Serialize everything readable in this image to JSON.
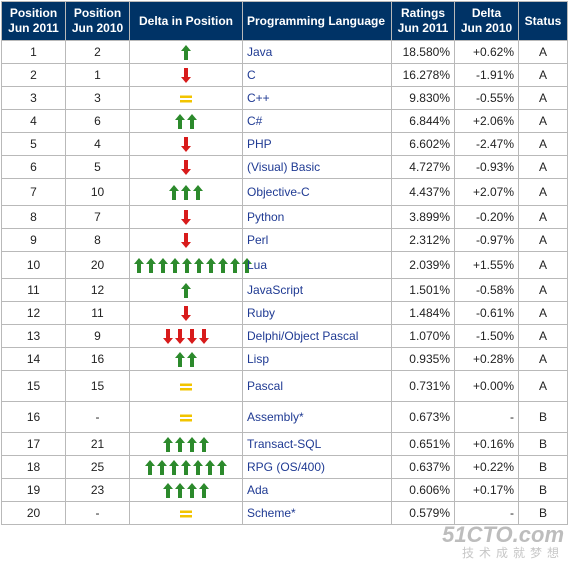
{
  "headers": [
    "Position\nJun 2011",
    "Position\nJun 2010",
    "Delta in Position",
    "Programming Language",
    "Ratings\nJun 2011",
    "Delta\nJun 2010",
    "Status"
  ],
  "colors": {
    "header_bg": "#003366",
    "up": "#2c8a2c",
    "down": "#d81b1b",
    "same": "#f2c400"
  },
  "rows": [
    {
      "pos2011": "1",
      "pos2010": "2",
      "delta": {
        "dir": "up",
        "count": 1
      },
      "language": "Java",
      "rating": "18.580%",
      "delta_rating": "+0.62%",
      "status": "A"
    },
    {
      "pos2011": "2",
      "pos2010": "1",
      "delta": {
        "dir": "down",
        "count": 1
      },
      "language": "C",
      "rating": "16.278%",
      "delta_rating": "-1.91%",
      "status": "A"
    },
    {
      "pos2011": "3",
      "pos2010": "3",
      "delta": {
        "dir": "same",
        "count": 1
      },
      "language": "C++",
      "rating": "9.830%",
      "delta_rating": "-0.55%",
      "status": "A"
    },
    {
      "pos2011": "4",
      "pos2010": "6",
      "delta": {
        "dir": "up",
        "count": 2
      },
      "language": "C#",
      "rating": "6.844%",
      "delta_rating": "+2.06%",
      "status": "A"
    },
    {
      "pos2011": "5",
      "pos2010": "4",
      "delta": {
        "dir": "down",
        "count": 1
      },
      "language": "PHP",
      "rating": "6.602%",
      "delta_rating": "-2.47%",
      "status": "A"
    },
    {
      "pos2011": "6",
      "pos2010": "5",
      "delta": {
        "dir": "down",
        "count": 1
      },
      "language": "(Visual) Basic",
      "rating": "4.727%",
      "delta_rating": "-0.93%",
      "status": "A"
    },
    {
      "pos2011": "7",
      "pos2010": "10",
      "delta": {
        "dir": "up",
        "count": 3
      },
      "language": "Objective-C",
      "rating": "4.437%",
      "delta_rating": "+2.07%",
      "status": "A"
    },
    {
      "pos2011": "8",
      "pos2010": "7",
      "delta": {
        "dir": "down",
        "count": 1
      },
      "language": "Python",
      "rating": "3.899%",
      "delta_rating": "-0.20%",
      "status": "A"
    },
    {
      "pos2011": "9",
      "pos2010": "8",
      "delta": {
        "dir": "down",
        "count": 1
      },
      "language": "Perl",
      "rating": "2.312%",
      "delta_rating": "-0.97%",
      "status": "A"
    },
    {
      "pos2011": "10",
      "pos2010": "20",
      "delta": {
        "dir": "up",
        "count": 10
      },
      "language": "Lua",
      "rating": "2.039%",
      "delta_rating": "+1.55%",
      "status": "A"
    },
    {
      "pos2011": "11",
      "pos2010": "12",
      "delta": {
        "dir": "up",
        "count": 1
      },
      "language": "JavaScript",
      "rating": "1.501%",
      "delta_rating": "-0.58%",
      "status": "A"
    },
    {
      "pos2011": "12",
      "pos2010": "11",
      "delta": {
        "dir": "down",
        "count": 1
      },
      "language": "Ruby",
      "rating": "1.484%",
      "delta_rating": "-0.61%",
      "status": "A"
    },
    {
      "pos2011": "13",
      "pos2010": "9",
      "delta": {
        "dir": "down",
        "count": 4
      },
      "language": "Delphi/Object Pascal",
      "rating": "1.070%",
      "delta_rating": "-1.50%",
      "status": "A"
    },
    {
      "pos2011": "14",
      "pos2010": "16",
      "delta": {
        "dir": "up",
        "count": 2
      },
      "language": "Lisp",
      "rating": "0.935%",
      "delta_rating": "+0.28%",
      "status": "A"
    },
    {
      "pos2011": "15",
      "pos2010": "15",
      "delta": {
        "dir": "same",
        "count": 1
      },
      "language": "Pascal",
      "rating": "0.731%",
      "delta_rating": "+0.00%",
      "status": "A"
    },
    {
      "pos2011": "16",
      "pos2010": "-",
      "delta": {
        "dir": "same",
        "count": 1
      },
      "language": "Assembly*",
      "rating": "0.673%",
      "delta_rating": "-",
      "status": "B"
    },
    {
      "pos2011": "17",
      "pos2010": "21",
      "delta": {
        "dir": "up",
        "count": 4
      },
      "language": "Transact-SQL",
      "rating": "0.651%",
      "delta_rating": "+0.16%",
      "status": "B"
    },
    {
      "pos2011": "18",
      "pos2010": "25",
      "delta": {
        "dir": "up",
        "count": 7
      },
      "language": "RPG (OS/400)",
      "rating": "0.637%",
      "delta_rating": "+0.22%",
      "status": "B"
    },
    {
      "pos2011": "19",
      "pos2010": "23",
      "delta": {
        "dir": "up",
        "count": 4
      },
      "language": "Ada",
      "rating": "0.606%",
      "delta_rating": "+0.17%",
      "status": "B"
    },
    {
      "pos2011": "20",
      "pos2010": "-",
      "delta": {
        "dir": "same",
        "count": 1
      },
      "language": "Scheme*",
      "rating": "0.579%",
      "delta_rating": "-",
      "status": "B"
    }
  ],
  "watermark": {
    "text": "51CTO.com",
    "subtext": "技术成就梦想"
  }
}
